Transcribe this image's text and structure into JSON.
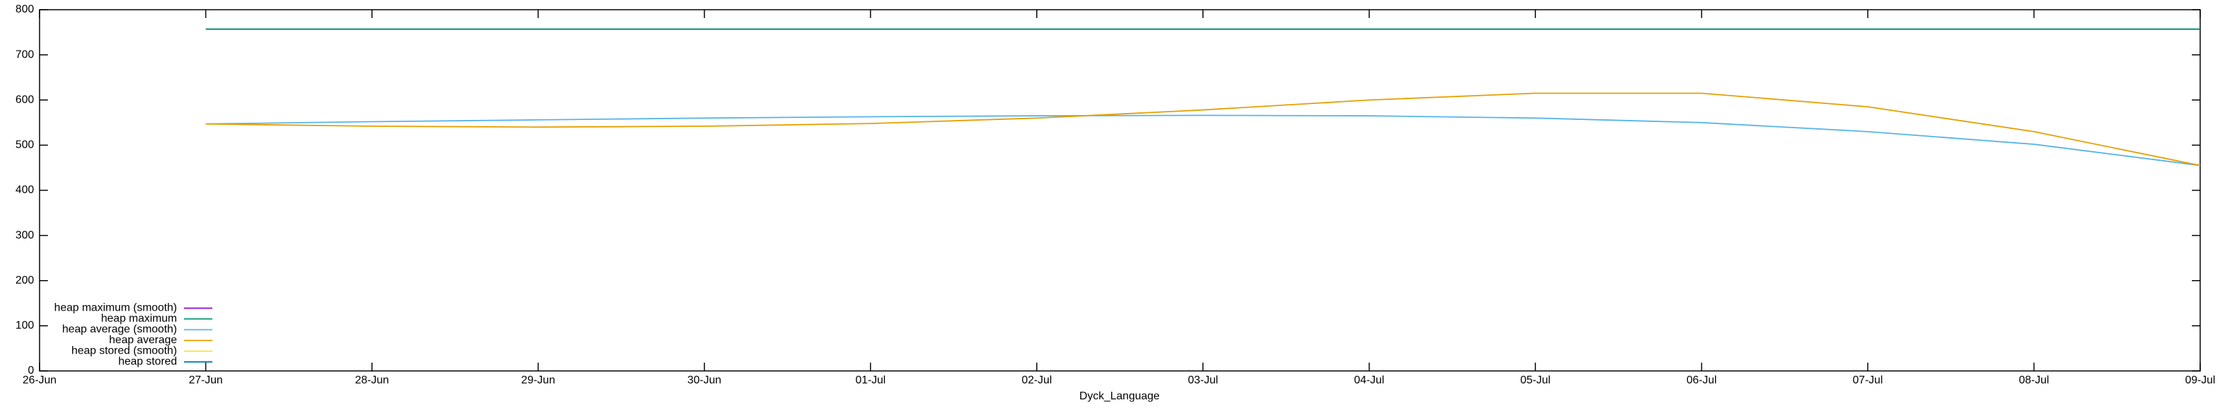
{
  "chart_data": {
    "type": "line",
    "x_label": "Dyck_Language",
    "x": [
      "26-Jun",
      "27-Jun",
      "28-Jun",
      "29-Jun",
      "30-Jun",
      "01-Jul",
      "02-Jul",
      "03-Jul",
      "04-Jul",
      "05-Jul",
      "06-Jul",
      "07-Jul",
      "08-Jul",
      "09-Jul"
    ],
    "ylim": [
      0,
      800
    ],
    "yticks": [
      0,
      100,
      200,
      300,
      400,
      500,
      600,
      700,
      800
    ],
    "legend": "bottom-left",
    "series": [
      {
        "name": "heap maximum (smooth)",
        "color": "#9400d3",
        "values": [
          null,
          757,
          757,
          757,
          757,
          757,
          757,
          757,
          757,
          757,
          757,
          757,
          757,
          757
        ]
      },
      {
        "name": "heap maximum",
        "color": "#009e73",
        "values": [
          null,
          757,
          757,
          757,
          757,
          757,
          757,
          757,
          757,
          757,
          757,
          757,
          757,
          757
        ]
      },
      {
        "name": "heap average (smooth)",
        "color": "#56b4e9",
        "values": [
          null,
          547,
          552,
          556,
          560,
          563,
          565,
          566,
          565,
          560,
          550,
          530,
          502,
          455
        ]
      },
      {
        "name": "heap average",
        "color": "#e69f00",
        "values": [
          null,
          547,
          542,
          540,
          542,
          548,
          560,
          578,
          600,
          615,
          615,
          585,
          530,
          455
        ]
      },
      {
        "name": "heap stored (smooth)",
        "color": "#f0e442",
        "values": [
          null,
          null,
          null,
          null,
          null,
          null,
          null,
          null,
          null,
          null,
          null,
          null,
          null,
          null
        ]
      },
      {
        "name": "heap stored",
        "color": "#0072b2",
        "values": [
          null,
          null,
          null,
          null,
          null,
          null,
          null,
          null,
          null,
          null,
          null,
          null,
          null,
          null
        ]
      }
    ]
  }
}
